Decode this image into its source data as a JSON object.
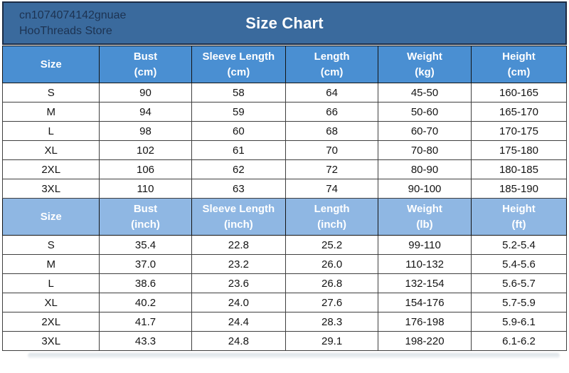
{
  "banner": {
    "store_id": "cn1074074142gnuae",
    "store_name": "HooThreads Store",
    "title": "Size Chart"
  },
  "colors": {
    "banner_bg": "#3a6a9d",
    "banner_text": "#1d3352",
    "title_text": "#ffffff",
    "header_metric_bg": "#4a8fd2",
    "header_imperial_bg": "#8fb7e3",
    "header_text": "#ffffff",
    "cell_text": "#141414",
    "grid_border": "#3f3f3f"
  },
  "chart_data": {
    "type": "table",
    "title": "Size Chart",
    "tables": [
      {
        "name": "metric",
        "header": [
          {
            "label": "Size",
            "unit": ""
          },
          {
            "label": "Bust",
            "unit": "(cm)"
          },
          {
            "label": "Sleeve Length",
            "unit": "(cm)"
          },
          {
            "label": "Length",
            "unit": "(cm)"
          },
          {
            "label": "Weight",
            "unit": "(kg)"
          },
          {
            "label": "Height",
            "unit": "(cm)"
          }
        ],
        "rows": [
          [
            "S",
            "90",
            "58",
            "64",
            "45-50",
            "160-165"
          ],
          [
            "M",
            "94",
            "59",
            "66",
            "50-60",
            "165-170"
          ],
          [
            "L",
            "98",
            "60",
            "68",
            "60-70",
            "170-175"
          ],
          [
            "XL",
            "102",
            "61",
            "70",
            "70-80",
            "175-180"
          ],
          [
            "2XL",
            "106",
            "62",
            "72",
            "80-90",
            "180-185"
          ],
          [
            "3XL",
            "110",
            "63",
            "74",
            "90-100",
            "185-190"
          ]
        ]
      },
      {
        "name": "imperial",
        "header": [
          {
            "label": "Size",
            "unit": ""
          },
          {
            "label": "Bust",
            "unit": "(inch)"
          },
          {
            "label": "Sleeve Length",
            "unit": "(inch)"
          },
          {
            "label": "Length",
            "unit": "(inch)"
          },
          {
            "label": "Weight",
            "unit": "(lb)"
          },
          {
            "label": "Height",
            "unit": "(ft)"
          }
        ],
        "rows": [
          [
            "S",
            "35.4",
            "22.8",
            "25.2",
            "99-110",
            "5.2-5.4"
          ],
          [
            "M",
            "37.0",
            "23.2",
            "26.0",
            "110-132",
            "5.4-5.6"
          ],
          [
            "L",
            "38.6",
            "23.6",
            "26.8",
            "132-154",
            "5.6-5.7"
          ],
          [
            "XL",
            "40.2",
            "24.0",
            "27.6",
            "154-176",
            "5.7-5.9"
          ],
          [
            "2XL",
            "41.7",
            "24.4",
            "28.3",
            "176-198",
            "5.9-6.1"
          ],
          [
            "3XL",
            "43.3",
            "24.8",
            "29.1",
            "198-220",
            "6.1-6.2"
          ]
        ]
      }
    ]
  }
}
